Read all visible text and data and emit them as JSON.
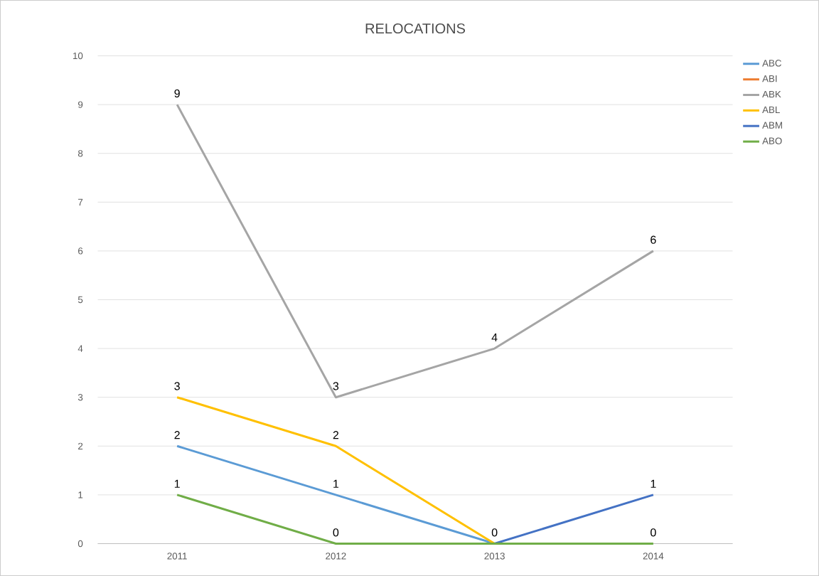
{
  "chart_data": {
    "type": "line",
    "title": "RELOCATIONS",
    "categories": [
      "2011",
      "2012",
      "2013",
      "2014"
    ],
    "series": [
      {
        "name": "ABC",
        "color": "#5b9bd5",
        "values": [
          2,
          1,
          0,
          null
        ],
        "value_labels": [
          "2",
          "1",
          "0",
          null
        ]
      },
      {
        "name": "ABI",
        "color": "#ed7d31",
        "values": [
          null,
          null,
          null,
          null
        ]
      },
      {
        "name": "ABK",
        "color": "#a5a5a5",
        "values": [
          9,
          3,
          4,
          6
        ],
        "value_labels": [
          "9",
          "3",
          "4",
          "6"
        ]
      },
      {
        "name": "ABL",
        "color": "#ffc000",
        "values": [
          3,
          2,
          0,
          null
        ],
        "value_labels": [
          "3",
          "2",
          null,
          null
        ]
      },
      {
        "name": "ABM",
        "color": "#4472c4",
        "values": [
          null,
          null,
          0,
          1
        ],
        "value_labels": [
          null,
          null,
          null,
          "1"
        ]
      },
      {
        "name": "ABO",
        "color": "#70ad47",
        "values": [
          1,
          0,
          0,
          0
        ],
        "value_labels": [
          "1",
          "0",
          null,
          "0"
        ]
      }
    ],
    "ylim": [
      0,
      10
    ],
    "yticks": [
      0,
      1,
      2,
      3,
      4,
      5,
      6,
      7,
      8,
      9,
      10
    ],
    "grid": "y",
    "legend": "right",
    "marker": "none",
    "line_style": "solid"
  }
}
